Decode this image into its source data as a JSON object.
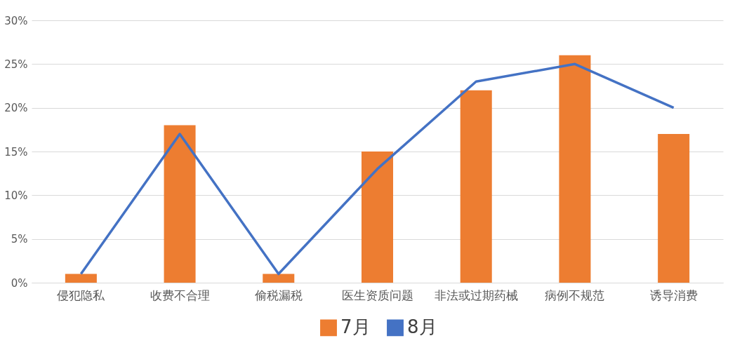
{
  "chart_data": {
    "type": "bar",
    "categories": [
      "侵犯隐私",
      "收费不合理",
      "偷税漏税",
      "医生资质问题",
      "非法或过期药械",
      "病例不规范",
      "诱导消费"
    ],
    "series": [
      {
        "name": "7月",
        "color": "#ed7d31",
        "values": [
          1,
          18,
          1,
          15,
          22,
          26,
          17
        ]
      },
      {
        "name": "8月",
        "type": "line",
        "color": "#4472c4",
        "values": [
          1,
          17,
          1,
          13,
          23,
          25,
          20
        ]
      }
    ],
    "ylim": [
      0,
      30
    ],
    "yticks": [
      {
        "value": 0,
        "label": "0%"
      },
      {
        "value": 5,
        "label": "5%"
      },
      {
        "value": 10,
        "label": "10%"
      },
      {
        "value": 15,
        "label": "15%"
      },
      {
        "value": 20,
        "label": "20%"
      },
      {
        "value": 25,
        "label": "25%"
      },
      {
        "value": 30,
        "label": "30%"
      }
    ],
    "grid": "y",
    "legend": "bottom",
    "marker": "none",
    "line_style": "solid"
  }
}
